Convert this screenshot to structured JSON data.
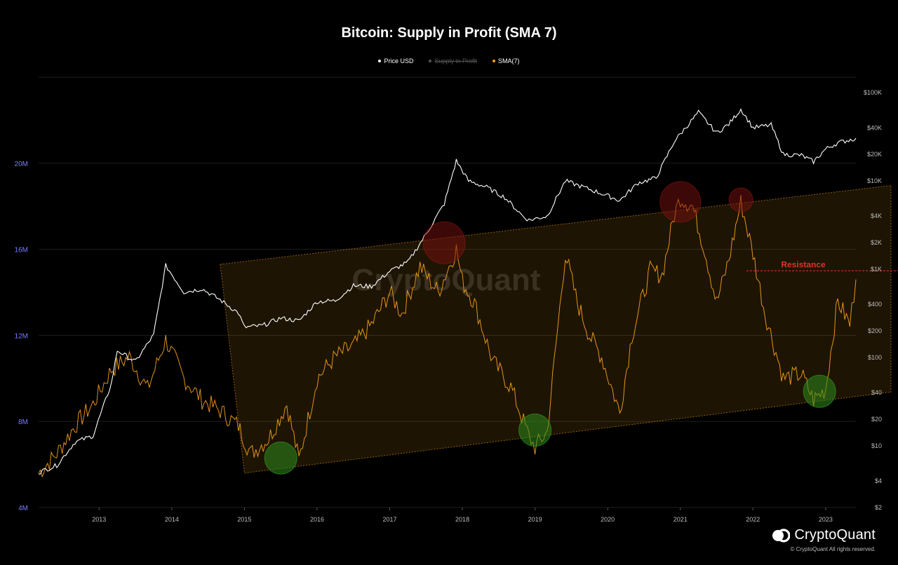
{
  "title": "Bitcoin: Supply in Profit (SMA 7)",
  "legend": [
    {
      "label": "Price USD",
      "color": "#ffffff",
      "hidden": false
    },
    {
      "label": "Supply in Profit",
      "color": "#666666",
      "hidden": true
    },
    {
      "label": "SMA(7)",
      "color": "#f7a21b",
      "hidden": false
    }
  ],
  "brand": {
    "name": "CryptoQuant",
    "copyright": "© CryptoQuant All rights reserved.",
    "watermark": "CryptoQuant"
  },
  "annotation": {
    "label": "Resistance",
    "level": 15000000
  },
  "colors": {
    "background": "#000000",
    "price": "#ffffff",
    "sma": "#f7a21b",
    "channel": "#f7a21b",
    "resistance": "#e0322a",
    "grid": "#1e1e1e",
    "left_axis": "#7b7bff",
    "right_axis": "#bbbbbb"
  },
  "chart_data": {
    "type": "line",
    "title": "Bitcoin: Supply in Profit (SMA 7)",
    "x_ticks": [
      "2013",
      "2014",
      "2015",
      "2016",
      "2017",
      "2018",
      "2019",
      "2020",
      "2021",
      "2022",
      "2023"
    ],
    "xlim": [
      "2012-03",
      "2023-06"
    ],
    "y_left": {
      "scale": "linear",
      "ylim": [
        4000000,
        24000000
      ],
      "ticks": [
        "4M",
        "8M",
        "12M",
        "16M",
        "20M"
      ],
      "tick_values": [
        4000000,
        8000000,
        12000000,
        16000000,
        20000000
      ]
    },
    "y_right": {
      "scale": "log",
      "ylim": [
        2,
        150000
      ],
      "ticks": [
        "$2",
        "$4",
        "$10",
        "$20",
        "$40",
        "$100",
        "$200",
        "$400",
        "$1K",
        "$2K",
        "$4K",
        "$10K",
        "$20K",
        "$40K",
        "$100K"
      ],
      "tick_values": [
        2,
        4,
        10,
        20,
        40,
        100,
        200,
        400,
        1000,
        2000,
        4000,
        10000,
        20000,
        40000,
        100000
      ]
    },
    "grid": true,
    "legend_position": "top-center",
    "series": [
      {
        "name": "Price USD",
        "axis": "right",
        "x": [
          "2012-03",
          "2012-06",
          "2012-09",
          "2012-12",
          "2013-03",
          "2013-04",
          "2013-07",
          "2013-10",
          "2013-12",
          "2014-03",
          "2014-06",
          "2014-09",
          "2014-12",
          "2015-01",
          "2015-04",
          "2015-07",
          "2015-10",
          "2016-01",
          "2016-04",
          "2016-07",
          "2016-10",
          "2017-01",
          "2017-04",
          "2017-07",
          "2017-10",
          "2017-12",
          "2018-02",
          "2018-05",
          "2018-08",
          "2018-11",
          "2018-12",
          "2019-03",
          "2019-06",
          "2019-09",
          "2019-12",
          "2020-03",
          "2020-06",
          "2020-09",
          "2020-12",
          "2021-01",
          "2021-04",
          "2021-07",
          "2021-09",
          "2021-11",
          "2022-01",
          "2022-04",
          "2022-06",
          "2022-09",
          "2022-11",
          "2023-01",
          "2023-03",
          "2023-06"
        ],
        "values": [
          5,
          6,
          11,
          13,
          50,
          120,
          90,
          180,
          1100,
          550,
          600,
          450,
          320,
          220,
          230,
          280,
          260,
          430,
          440,
          650,
          640,
          950,
          1200,
          2500,
          5500,
          17000,
          10000,
          8500,
          6500,
          4000,
          3600,
          4000,
          10000,
          8500,
          7200,
          6000,
          9500,
          10800,
          28000,
          34000,
          60000,
          35000,
          44000,
          65000,
          40000,
          43000,
          20000,
          19500,
          16500,
          23000,
          27000,
          30500
        ]
      },
      {
        "name": "SMA(7)",
        "axis": "left",
        "x": [
          "2012-03",
          "2012-06",
          "2012-09",
          "2012-12",
          "2013-03",
          "2013-06",
          "2013-09",
          "2013-12",
          "2014-03",
          "2014-06",
          "2014-09",
          "2014-12",
          "2015-02",
          "2015-05",
          "2015-08",
          "2015-10",
          "2016-01",
          "2016-04",
          "2016-07",
          "2016-10",
          "2017-01",
          "2017-03",
          "2017-06",
          "2017-09",
          "2017-12",
          "2018-01",
          "2018-03",
          "2018-06",
          "2018-09",
          "2018-12",
          "2019-01",
          "2019-03",
          "2019-06",
          "2019-08",
          "2019-10",
          "2019-12",
          "2020-03",
          "2020-05",
          "2020-08",
          "2020-10",
          "2020-12",
          "2021-01",
          "2021-03",
          "2021-05",
          "2021-07",
          "2021-09",
          "2021-11",
          "2022-01",
          "2022-03",
          "2022-06",
          "2022-09",
          "2022-11",
          "2023-01",
          "2023-03",
          "2023-05",
          "2023-06"
        ],
        "values": [
          5600000,
          6500000,
          7800000,
          8800000,
          10400000,
          11000000,
          9500000,
          11800000,
          10000000,
          9000000,
          8500000,
          7800000,
          6500000,
          7200000,
          8800000,
          6200000,
          10000000,
          11000000,
          11500000,
          12500000,
          14000000,
          13000000,
          15200000,
          14000000,
          16000000,
          14500000,
          13500000,
          10800000,
          9600000,
          7300000,
          6800000,
          7500000,
          15800000,
          13500000,
          12000000,
          11000000,
          8400000,
          12000000,
          15000000,
          14800000,
          17600000,
          18400000,
          18000000,
          16000000,
          13500000,
          15500000,
          18200000,
          15800000,
          13000000,
          10000000,
          10200000,
          9000000,
          9500000,
          13600000,
          12500000,
          14600000
        ]
      }
    ],
    "channel": {
      "upper": [
        {
          "x": "2014-09",
          "y": 15300000
        },
        {
          "x": "2023-06",
          "y": 18900000
        }
      ],
      "lower": [
        {
          "x": "2015-01",
          "y": 5600000
        },
        {
          "x": "2023-06",
          "y": 9300000
        }
      ]
    },
    "resistance_level": 15000000,
    "support_circles": [
      {
        "x": "2015-07",
        "y": 6300000
      },
      {
        "x": "2019-01",
        "y": 7600000
      },
      {
        "x": "2022-12",
        "y": 9400000
      }
    ],
    "top_circles": [
      {
        "x": "2017-10",
        "y": 16300000
      },
      {
        "x": "2021-01",
        "y": 18200000
      },
      {
        "x": "2021-11",
        "y": 18300000
      }
    ]
  }
}
